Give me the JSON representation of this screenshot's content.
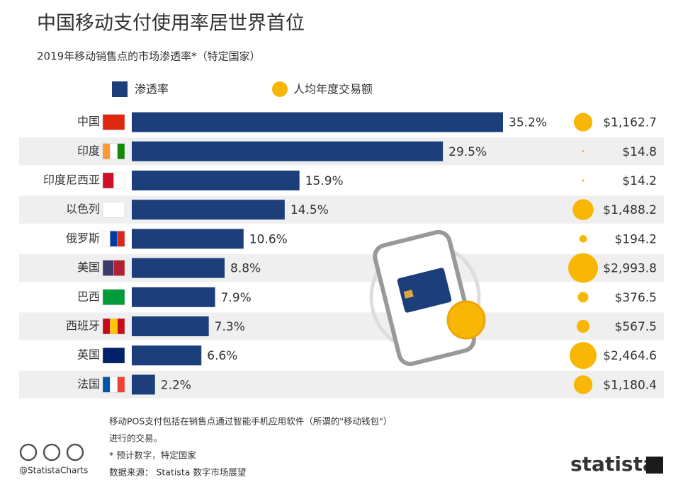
{
  "chart_data": {
    "type": "bar",
    "title": "中国移动支付使用率居世界首位",
    "subtitle": "2019年移动销售点的市场渗透率*（特定国家）",
    "categories": [
      "中国",
      "印度",
      "印度尼西亚",
      "以色列",
      "俄罗斯",
      "美国",
      "巴西",
      "西班牙",
      "英国",
      "法国"
    ],
    "series": [
      {
        "name": "渗透率",
        "color": "#1c3f7b",
        "values": [
          35.2,
          29.5,
          15.9,
          14.5,
          10.6,
          8.8,
          7.9,
          7.3,
          6.6,
          2.2
        ],
        "value_labels": [
          "35.2%",
          "29.5%",
          "15.9%",
          "14.5%",
          "10.6%",
          "8.8%",
          "7.9%",
          "7.3%",
          "6.6%",
          "2.2%"
        ]
      },
      {
        "name": "人均年度交易额",
        "color": "#f8b707",
        "values": [
          1162.7,
          14.8,
          14.2,
          1488.2,
          194.2,
          2993.8,
          376.5,
          567.5,
          2464.6,
          1180.4
        ],
        "value_labels": [
          "$1,162.7",
          "$14.8",
          "$14.2",
          "$1,488.2",
          "$194.2",
          "$2,993.8",
          "$376.5",
          "$567.5",
          "$2,464.6",
          "$1,180.4"
        ]
      }
    ],
    "notes": [
      "移动POS支付包括在销售点通过智能手机应用软件（所谓的\"移动钱包\"）",
      "进行的交易。",
      "* 预计数字，特定国家",
      "数据来源： Statista 数字市场展望"
    ],
    "credit": "@StatistaCharts",
    "logo": "statista"
  }
}
